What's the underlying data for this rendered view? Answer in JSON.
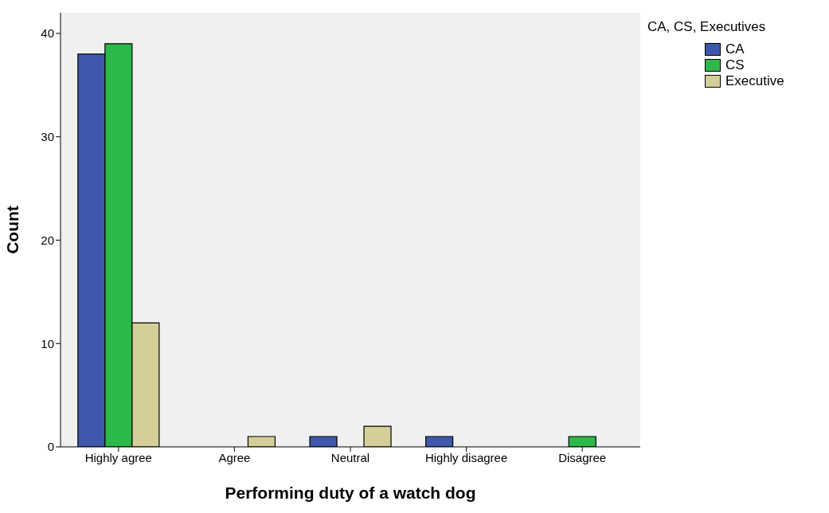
{
  "chart_data": {
    "type": "bar",
    "xlabel": "Performing duty of a watch dog",
    "ylabel": "Count",
    "legend_title": "CA, CS, Executives",
    "categories": [
      "Highly agree",
      "Agree",
      "Neutral",
      "Highly disagree",
      "Disagree"
    ],
    "series": [
      {
        "name": "CA",
        "color": "#3e58ac",
        "values": [
          38,
          0,
          1,
          1,
          0
        ]
      },
      {
        "name": "CS",
        "color": "#2db84a",
        "values": [
          39,
          0,
          0,
          0,
          1
        ]
      },
      {
        "name": "Executive",
        "color": "#d4cf98",
        "values": [
          12,
          1,
          2,
          0,
          0
        ]
      }
    ],
    "ylim": [
      0,
      42
    ],
    "yticks": [
      0,
      10,
      20,
      30,
      40
    ],
    "grid": false,
    "legend": "top right"
  }
}
